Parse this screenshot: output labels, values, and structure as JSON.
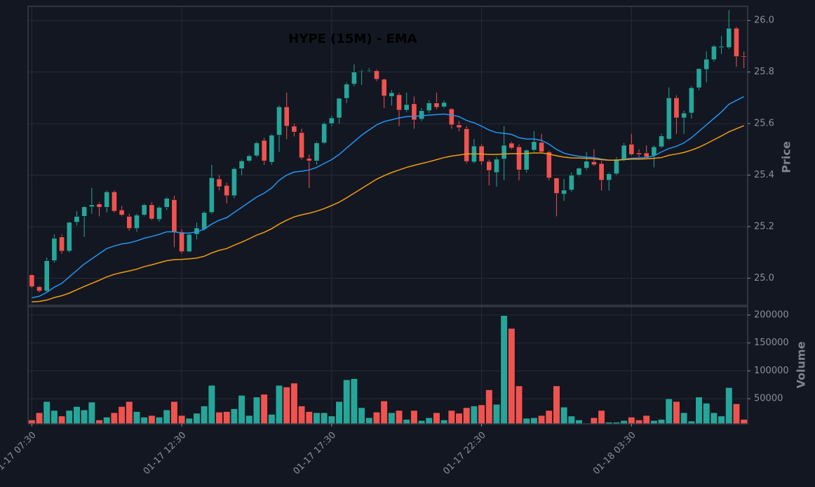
{
  "chart_data": {
    "type": "candlestick",
    "title": "HYPE (15M) - EMA",
    "ylabel": "Price",
    "ylim": [
      24.895,
      26.055
    ],
    "yticks": [
      {
        "value": 25,
        "label": "25.0"
      },
      25.2,
      25.4,
      25.6,
      25.8,
      {
        "value": 26,
        "label": "26.0"
      }
    ],
    "grid": true,
    "up_color": "#26a69a",
    "down_color": "#ef5350",
    "categories": [
      "01-17 07:30",
      null,
      null,
      null,
      null,
      null,
      null,
      null,
      null,
      null,
      null,
      null,
      null,
      null,
      null,
      null,
      null,
      null,
      null,
      null,
      "01-17 12:30",
      null,
      null,
      null,
      null,
      null,
      null,
      null,
      null,
      null,
      null,
      null,
      null,
      null,
      null,
      null,
      null,
      null,
      null,
      null,
      "01-17 17:30",
      null,
      null,
      null,
      null,
      null,
      null,
      null,
      null,
      null,
      null,
      null,
      null,
      null,
      null,
      null,
      null,
      null,
      null,
      null,
      "01-17 22:30",
      null,
      null,
      null,
      null,
      null,
      null,
      null,
      null,
      null,
      null,
      null,
      null,
      null,
      null,
      null,
      null,
      null,
      null,
      null,
      "01-18 03:30",
      null,
      null,
      null,
      null,
      null,
      null,
      null,
      null,
      null,
      null,
      null,
      null,
      null,
      null,
      null
    ],
    "ohlc": {
      "open": [
        25.013,
        24.967,
        24.95,
        25.068,
        25.16,
        25.105,
        25.217,
        25.24,
        25.277,
        25.288,
        25.275,
        25.335,
        25.265,
        25.24,
        25.193,
        25.245,
        25.285,
        25.228,
        25.275,
        25.305,
        25.18,
        25.103,
        25.17,
        25.19,
        25.255,
        25.385,
        25.36,
        25.32,
        25.425,
        25.455,
        25.475,
        25.535,
        25.45,
        25.555,
        25.665,
        25.59,
        25.565,
        25.465,
        25.455,
        25.525,
        25.6,
        25.622,
        25.698,
        25.753,
        25.805,
        25.805,
        25.805,
        25.772,
        25.705,
        25.712,
        25.652,
        25.677,
        25.617,
        25.65,
        25.68,
        25.665,
        25.657,
        25.595,
        25.58,
        25.451,
        25.513,
        25.453,
        25.41,
        25.462,
        25.524,
        25.51,
        25.42,
        25.497,
        25.527,
        25.49,
        25.389,
        25.326,
        25.342,
        25.4,
        25.427,
        25.452,
        25.445,
        25.38,
        25.405,
        25.462,
        25.52,
        25.486,
        25.486,
        25.476,
        25.51,
        25.54,
        25.7,
        25.622,
        25.641,
        25.739,
        25.81,
        25.848,
        25.895,
        25.895,
        25.97,
        25.862
      ],
      "high": [
        25.016,
        24.97,
        25.08,
        25.17,
        25.17,
        25.22,
        25.26,
        25.28,
        25.35,
        25.295,
        25.34,
        25.34,
        25.28,
        25.25,
        25.25,
        25.29,
        25.295,
        25.28,
        25.315,
        25.32,
        25.19,
        25.175,
        25.215,
        25.26,
        25.44,
        25.4,
        25.37,
        25.43,
        25.46,
        25.48,
        25.53,
        25.545,
        25.56,
        25.67,
        25.72,
        25.6,
        25.58,
        25.48,
        25.53,
        25.605,
        25.63,
        25.7,
        25.76,
        25.83,
        25.81,
        25.815,
        25.81,
        25.775,
        25.73,
        25.72,
        25.72,
        25.705,
        25.66,
        25.69,
        25.72,
        25.69,
        25.66,
        25.61,
        25.59,
        25.54,
        25.52,
        25.46,
        25.47,
        25.59,
        25.53,
        25.52,
        25.5,
        25.57,
        25.56,
        25.495,
        25.39,
        25.385,
        25.41,
        25.43,
        25.49,
        25.5,
        25.455,
        25.41,
        25.47,
        25.525,
        25.56,
        25.5,
        25.515,
        25.515,
        25.56,
        25.74,
        25.71,
        25.65,
        25.745,
        25.815,
        25.88,
        25.905,
        25.94,
        26.04,
        25.975,
        25.88
      ],
      "low": [
        24.962,
        24.945,
        24.945,
        25.06,
        25.095,
        25.1,
        25.205,
        25.16,
        25.25,
        25.24,
        25.255,
        25.255,
        25.24,
        25.185,
        25.18,
        25.24,
        25.225,
        25.22,
        25.265,
        25.12,
        25.095,
        25.1,
        25.15,
        25.185,
        25.25,
        25.34,
        25.29,
        25.31,
        25.4,
        25.45,
        25.47,
        25.44,
        25.44,
        25.49,
        25.54,
        25.55,
        25.46,
        25.35,
        25.44,
        25.52,
        25.59,
        25.6,
        25.68,
        25.745,
        25.75,
        25.8,
        25.765,
        25.66,
        25.67,
        25.59,
        25.645,
        25.58,
        25.61,
        25.64,
        25.655,
        25.66,
        25.58,
        25.57,
        25.445,
        25.445,
        25.44,
        25.36,
        25.355,
        25.38,
        25.5,
        25.38,
        25.41,
        25.49,
        25.485,
        25.38,
        25.24,
        25.3,
        25.335,
        25.395,
        25.42,
        25.435,
        25.34,
        25.34,
        25.4,
        25.455,
        25.475,
        25.47,
        25.465,
        25.43,
        25.505,
        25.535,
        25.56,
        25.56,
        25.62,
        25.73,
        25.76,
        25.84,
        25.87,
        25.89,
        25.82,
        25.815
      ],
      "close": [
        24.967,
        24.95,
        25.068,
        25.155,
        25.105,
        25.217,
        25.24,
        25.277,
        25.285,
        25.275,
        25.335,
        25.26,
        25.245,
        25.193,
        25.245,
        25.285,
        25.23,
        25.275,
        25.31,
        25.18,
        25.103,
        25.17,
        25.195,
        25.255,
        25.39,
        25.355,
        25.32,
        25.425,
        25.455,
        25.475,
        25.525,
        25.455,
        25.555,
        25.665,
        25.59,
        25.567,
        25.467,
        25.455,
        25.525,
        25.6,
        25.622,
        25.698,
        25.753,
        25.8,
        25.805,
        25.808,
        25.772,
        25.707,
        25.72,
        25.652,
        25.674,
        25.614,
        25.65,
        25.68,
        25.663,
        25.682,
        25.595,
        25.584,
        25.453,
        25.513,
        25.453,
        25.418,
        25.462,
        25.516,
        25.505,
        25.42,
        25.497,
        25.53,
        25.49,
        25.389,
        25.329,
        25.342,
        25.4,
        25.427,
        25.454,
        25.44,
        25.38,
        25.405,
        25.462,
        25.516,
        25.48,
        25.48,
        25.47,
        25.51,
        25.552,
        25.7,
        25.622,
        25.641,
        25.739,
        25.813,
        25.85,
        25.9,
        25.9,
        25.97,
        25.86,
        25.858
      ]
    },
    "ema_lines": [
      {
        "color": "#2196f3",
        "values": [
          24.924,
          24.93,
          24.945,
          24.965,
          24.98,
          25.005,
          25.03,
          25.055,
          25.075,
          25.095,
          25.115,
          25.125,
          25.133,
          25.137,
          25.145,
          25.155,
          25.162,
          25.17,
          25.18,
          25.18,
          25.175,
          25.175,
          25.18,
          25.19,
          25.21,
          25.225,
          25.235,
          25.255,
          25.275,
          25.295,
          25.315,
          25.33,
          25.35,
          25.38,
          25.4,
          25.412,
          25.415,
          25.42,
          25.43,
          25.445,
          25.46,
          25.48,
          25.505,
          25.53,
          25.555,
          25.575,
          25.595,
          25.608,
          25.615,
          25.622,
          25.627,
          25.628,
          25.63,
          25.633,
          25.635,
          25.637,
          25.633,
          25.627,
          25.612,
          25.603,
          25.59,
          25.575,
          25.565,
          25.562,
          25.558,
          25.545,
          25.54,
          25.54,
          25.535,
          25.52,
          25.5,
          25.485,
          25.478,
          25.473,
          25.47,
          25.468,
          25.462,
          25.458,
          25.458,
          25.462,
          25.465,
          25.467,
          25.468,
          25.475,
          25.49,
          25.503,
          25.512,
          25.525,
          25.545,
          25.57,
          25.595,
          25.62,
          25.645,
          25.675,
          25.69,
          25.705
        ]
      },
      {
        "color": "#f39c12",
        "values": [
          24.908,
          24.91,
          24.915,
          24.925,
          24.932,
          24.942,
          24.955,
          24.968,
          24.98,
          24.992,
          25.005,
          25.015,
          25.022,
          25.028,
          25.035,
          25.045,
          25.052,
          25.06,
          25.068,
          25.072,
          25.073,
          25.075,
          25.078,
          25.085,
          25.098,
          25.108,
          25.115,
          25.128,
          25.14,
          25.153,
          25.167,
          25.178,
          25.192,
          25.21,
          25.225,
          25.238,
          25.246,
          25.252,
          25.26,
          25.27,
          25.282,
          25.295,
          25.312,
          25.33,
          25.348,
          25.366,
          25.384,
          25.398,
          25.41,
          25.42,
          25.43,
          25.438,
          25.445,
          25.452,
          25.46,
          25.468,
          25.474,
          25.478,
          25.482,
          25.482,
          25.482,
          25.48,
          25.48,
          25.482,
          25.483,
          25.483,
          25.484,
          25.486,
          25.486,
          25.482,
          25.475,
          25.47,
          25.467,
          25.466,
          25.465,
          25.463,
          25.46,
          25.458,
          25.458,
          25.46,
          25.462,
          25.462,
          25.463,
          25.465,
          25.468,
          25.477,
          25.482,
          25.488,
          25.497,
          25.508,
          25.522,
          25.537,
          25.552,
          25.568,
          25.58,
          25.592
        ]
      }
    ],
    "volume": {
      "ylabel": "Volume",
      "ylim": [
        5000,
        215000
      ],
      "yticks": [
        50000,
        100000,
        150000,
        200000
      ],
      "values": [
        12000,
        25000,
        45000,
        29000,
        19000,
        29000,
        36000,
        30000,
        44000,
        12000,
        17000,
        25000,
        36000,
        45000,
        27000,
        17000,
        20000,
        17000,
        30000,
        45000,
        20000,
        15000,
        24000,
        37000,
        74000,
        26000,
        27000,
        32000,
        56000,
        20000,
        53000,
        58000,
        22000,
        74000,
        71000,
        78000,
        37000,
        27000,
        25000,
        25000,
        19000,
        45000,
        84000,
        86000,
        34000,
        16000,
        26000,
        46000,
        25000,
        29000,
        13000,
        29000,
        11000,
        16000,
        25000,
        12000,
        29000,
        24000,
        34000,
        37000,
        39000,
        66000,
        40000,
        199000,
        176000,
        73000,
        15000,
        16000,
        20000,
        29000,
        73000,
        35000,
        19000,
        12000,
        6000,
        16000,
        29000,
        8000,
        8000,
        11000,
        17000,
        12000,
        20000,
        11000,
        13000,
        50000,
        45000,
        25000,
        10000,
        53000,
        42000,
        25000,
        19000,
        70000,
        41000,
        13000
      ]
    }
  }
}
